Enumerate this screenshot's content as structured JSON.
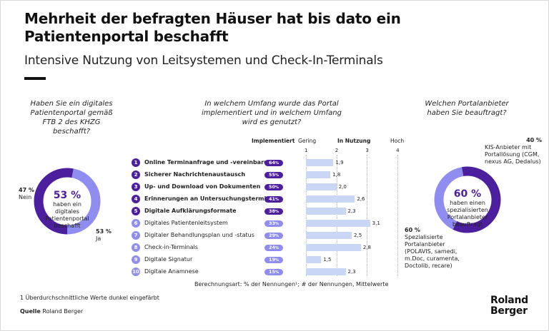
{
  "title": "Mehrheit der befragten Häuser hat bis dato ein Patientenportal beschafft",
  "subtitle": "Intensive Nutzung von Leitsystemen und Check-In-Terminals",
  "colors": {
    "dark": "#4b1f9e",
    "light": "#8f8df0",
    "bar": "#c9d7f4"
  },
  "left_panel": {
    "question": "Haben Sie ein digitales Patientenportal gemäß FTB 2 des KHZG beschafft?",
    "center_value": "53 %",
    "center_text": "haben ein digitales Patientenportal beschafft",
    "nein_value": "47 %",
    "nein_label": "Nein",
    "ja_value": "53 %",
    "ja_label": "Ja"
  },
  "middle_panel": {
    "question": "In welchem Umfang wurde das Portal implementiert und in welchem Umfang wird es genutzt?",
    "col_implementiert": "Implementiert",
    "col_gering": "Gering",
    "col_nutzung": "In Nutzung",
    "col_hoch": "Hoch",
    "ticks": [
      "1",
      "2",
      "3",
      "4"
    ],
    "footer": "Berechnungsart: % der Nennungen¹; # der Nennungen, Mittelwerte"
  },
  "right_panel": {
    "question": "Welchen Portalanbieter haben Sie beauftragt?",
    "center_value": "60 %",
    "center_text": "haben einen spezialisierten Portalanbieter beauftragt",
    "kis_value": "40 %",
    "kis_label": "KIS-Anbieter mit Portallösung (CGM, nexus AG, Dedalus)",
    "spec_value": "60 %",
    "spec_label": "Spezialisierte Portalanbieter (POLAVIS, samedi, m.Doc, curamenta, Doctolib, recare)"
  },
  "chart_data": [
    {
      "type": "pie",
      "categories": [
        "Ja",
        "Nein"
      ],
      "values": [
        53,
        47
      ],
      "colors": [
        "#4b1f9e",
        "#8f8df0"
      ]
    },
    {
      "type": "bar",
      "orientation": "horizontal",
      "categories": [
        "Online Terminanfrage und -vereinbarung",
        "Sicherer Nachrichtenaustausch",
        "Up- und Download von Dokumenten",
        "Erinnerungen an Untersuchungstermine",
        "Digitale Aufklärungsformate",
        "Digitales Patientenleitsystem",
        "Digitaler Behandlungsplan und -status",
        "Check-in-Terminals",
        "Digitale Signatur",
        "Digitale Anamnese"
      ],
      "numbers": [
        "1",
        "2",
        "3",
        "4",
        "5",
        "6",
        "7",
        "8",
        "9",
        "10"
      ],
      "highlighted": [
        true,
        true,
        true,
        true,
        true,
        false,
        false,
        false,
        false,
        false
      ],
      "series": [
        {
          "name": "Implementiert",
          "values": [
            64,
            55,
            50,
            41,
            38,
            33,
            29,
            24,
            19,
            15
          ]
        },
        {
          "name": "In Nutzung",
          "values": [
            1.9,
            1.8,
            2.0,
            2.6,
            2.3,
            3.1,
            2.5,
            2.8,
            1.5,
            2.3
          ]
        }
      ],
      "value_labels": [
        "1,9",
        "1,8",
        "2,0",
        "2,6",
        "2,3",
        "3,1",
        "2,5",
        "2,8",
        "1,5",
        "2,3"
      ],
      "xlim": [
        1,
        4
      ]
    },
    {
      "type": "pie",
      "categories": [
        "Spezialisierte Portalanbieter",
        "KIS-Anbieter mit Portallösung"
      ],
      "values": [
        60,
        40
      ],
      "colors": [
        "#4b1f9e",
        "#8f8df0"
      ]
    }
  ],
  "footnote": "1 Überdurchschnittliche Werte dunkel eingefärbt",
  "source_label": "Quelle",
  "source_value": "Roland Berger",
  "logo_line1": "Roland",
  "logo_line2": "Berger"
}
